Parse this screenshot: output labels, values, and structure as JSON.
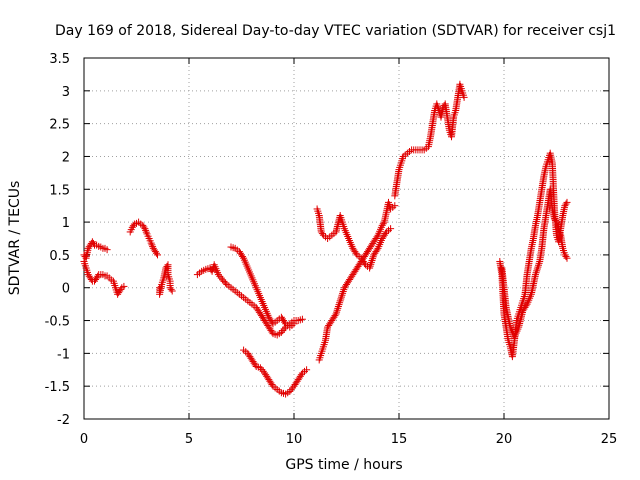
{
  "chart_data": {
    "type": "scatter",
    "title": "Day 169 of 2018, Sidereal Day-to-day VTEC variation (SDTVAR) for receiver csj1",
    "xlabel": "GPS time / hours",
    "ylabel": "SDTVAR / TECUs",
    "xlim": [
      0,
      25
    ],
    "ylim": [
      -2,
      3.5
    ],
    "xticks": [
      "0",
      "5",
      "10",
      "15",
      "20",
      "25"
    ],
    "yticks": [
      "-2",
      "-1.5",
      "-1",
      "-0.5",
      "0",
      "0.5",
      "1",
      "1.5",
      "2",
      "2.5",
      "3",
      "3.5"
    ],
    "grid": true,
    "marker": "plus",
    "color": "#e00000",
    "series": [
      {
        "points": [
          [
            0.0,
            0.5
          ],
          [
            0.1,
            0.45
          ],
          [
            0.2,
            0.6
          ],
          [
            0.3,
            0.65
          ],
          [
            0.4,
            0.7
          ],
          [
            0.5,
            0.65
          ],
          [
            0.6,
            0.65
          ],
          [
            0.7,
            0.63
          ],
          [
            0.8,
            0.62
          ],
          [
            0.9,
            0.6
          ],
          [
            1.0,
            0.6
          ],
          [
            1.1,
            0.58
          ]
        ]
      },
      {
        "points": [
          [
            0.0,
            0.4
          ],
          [
            0.1,
            0.3
          ],
          [
            0.2,
            0.2
          ],
          [
            0.3,
            0.15
          ],
          [
            0.4,
            0.1
          ],
          [
            0.5,
            0.1
          ],
          [
            0.6,
            0.15
          ],
          [
            0.7,
            0.2
          ],
          [
            0.8,
            0.2
          ],
          [
            0.9,
            0.2
          ],
          [
            1.0,
            0.18
          ],
          [
            1.1,
            0.18
          ],
          [
            1.2,
            0.15
          ],
          [
            1.3,
            0.12
          ],
          [
            1.4,
            0.1
          ],
          [
            1.5,
            0.0
          ],
          [
            1.6,
            -0.1
          ],
          [
            1.7,
            -0.05
          ],
          [
            1.8,
            0.0
          ],
          [
            1.9,
            0.02
          ]
        ]
      },
      {
        "points": [
          [
            2.2,
            0.85
          ],
          [
            2.3,
            0.92
          ],
          [
            2.4,
            0.97
          ],
          [
            2.5,
            0.98
          ],
          [
            2.6,
            1.0
          ],
          [
            2.7,
            0.97
          ],
          [
            2.8,
            0.95
          ],
          [
            2.9,
            0.9
          ],
          [
            3.0,
            0.82
          ],
          [
            3.1,
            0.75
          ],
          [
            3.2,
            0.68
          ],
          [
            3.3,
            0.6
          ],
          [
            3.4,
            0.55
          ],
          [
            3.5,
            0.5
          ]
        ]
      },
      {
        "points": [
          [
            3.6,
            0.0
          ],
          [
            3.6,
            -0.1
          ],
          [
            3.7,
            0.05
          ],
          [
            3.8,
            0.15
          ],
          [
            3.9,
            0.3
          ],
          [
            4.0,
            0.35
          ],
          [
            4.0,
            0.2
          ],
          [
            4.1,
            0.1
          ],
          [
            4.1,
            0.0
          ],
          [
            4.2,
            -0.05
          ]
        ]
      },
      {
        "points": [
          [
            5.4,
            0.2
          ],
          [
            5.6,
            0.25
          ],
          [
            5.8,
            0.28
          ],
          [
            6.0,
            0.3
          ],
          [
            6.1,
            0.25
          ],
          [
            6.2,
            0.35
          ],
          [
            6.4,
            0.2
          ],
          [
            6.6,
            0.12
          ],
          [
            6.8,
            0.05
          ],
          [
            7.0,
            0.0
          ],
          [
            7.2,
            -0.05
          ],
          [
            7.4,
            -0.1
          ],
          [
            7.6,
            -0.15
          ],
          [
            7.8,
            -0.2
          ],
          [
            8.0,
            -0.25
          ],
          [
            8.2,
            -0.3
          ],
          [
            8.4,
            -0.4
          ],
          [
            8.6,
            -0.5
          ],
          [
            8.8,
            -0.6
          ],
          [
            9.0,
            -0.7
          ],
          [
            9.2,
            -0.72
          ],
          [
            9.4,
            -0.68
          ],
          [
            9.6,
            -0.6
          ],
          [
            9.8,
            -0.55
          ],
          [
            10.0,
            -0.5
          ],
          [
            10.2,
            -0.5
          ],
          [
            10.4,
            -0.48
          ]
        ]
      },
      {
        "points": [
          [
            7.0,
            0.62
          ],
          [
            7.2,
            0.6
          ],
          [
            7.4,
            0.55
          ],
          [
            7.6,
            0.45
          ],
          [
            7.8,
            0.3
          ],
          [
            8.0,
            0.15
          ],
          [
            8.2,
            0.0
          ],
          [
            8.4,
            -0.15
          ],
          [
            8.6,
            -0.3
          ],
          [
            8.8,
            -0.45
          ],
          [
            9.0,
            -0.55
          ],
          [
            9.2,
            -0.5
          ],
          [
            9.4,
            -0.45
          ],
          [
            9.6,
            -0.55
          ],
          [
            9.8,
            -0.6
          ],
          [
            10.0,
            -0.55
          ]
        ]
      },
      {
        "points": [
          [
            7.6,
            -0.95
          ],
          [
            7.8,
            -1.0
          ],
          [
            8.0,
            -1.1
          ],
          [
            8.2,
            -1.2
          ],
          [
            8.4,
            -1.22
          ],
          [
            8.6,
            -1.3
          ],
          [
            8.8,
            -1.4
          ],
          [
            9.0,
            -1.5
          ],
          [
            9.2,
            -1.55
          ],
          [
            9.4,
            -1.6
          ],
          [
            9.6,
            -1.62
          ],
          [
            9.8,
            -1.58
          ],
          [
            10.0,
            -1.5
          ],
          [
            10.2,
            -1.4
          ],
          [
            10.4,
            -1.3
          ],
          [
            10.6,
            -1.25
          ]
        ]
      },
      {
        "points": [
          [
            11.2,
            -1.1
          ],
          [
            11.3,
            -1.0
          ],
          [
            11.4,
            -0.9
          ],
          [
            11.5,
            -0.8
          ],
          [
            11.6,
            -0.6
          ],
          [
            11.8,
            -0.5
          ],
          [
            12.0,
            -0.4
          ],
          [
            12.2,
            -0.2
          ],
          [
            12.4,
            0.0
          ],
          [
            12.6,
            0.1
          ],
          [
            12.8,
            0.2
          ],
          [
            13.0,
            0.3
          ],
          [
            13.2,
            0.4
          ],
          [
            13.4,
            0.5
          ],
          [
            13.6,
            0.6
          ],
          [
            13.8,
            0.7
          ],
          [
            14.0,
            0.8
          ],
          [
            14.2,
            0.95
          ],
          [
            14.3,
            1.0
          ],
          [
            14.4,
            1.15
          ],
          [
            14.5,
            1.3
          ],
          [
            14.6,
            1.2
          ],
          [
            14.8,
            1.25
          ]
        ]
      },
      {
        "points": [
          [
            11.1,
            1.2
          ],
          [
            11.2,
            1.1
          ],
          [
            11.3,
            0.85
          ],
          [
            11.4,
            0.8
          ],
          [
            11.6,
            0.75
          ],
          [
            11.8,
            0.8
          ],
          [
            12.0,
            0.85
          ],
          [
            12.2,
            1.1
          ],
          [
            12.3,
            1.0
          ],
          [
            12.4,
            0.9
          ],
          [
            12.6,
            0.75
          ],
          [
            12.8,
            0.6
          ],
          [
            13.0,
            0.5
          ],
          [
            13.2,
            0.45
          ],
          [
            13.4,
            0.35
          ],
          [
            13.6,
            0.3
          ],
          [
            13.8,
            0.5
          ],
          [
            14.0,
            0.6
          ],
          [
            14.2,
            0.75
          ],
          [
            14.4,
            0.85
          ],
          [
            14.6,
            0.9
          ]
        ]
      },
      {
        "points": [
          [
            14.8,
            1.4
          ],
          [
            14.9,
            1.6
          ],
          [
            15.0,
            1.8
          ],
          [
            15.1,
            1.9
          ],
          [
            15.2,
            2.0
          ],
          [
            15.4,
            2.05
          ],
          [
            15.6,
            2.1
          ],
          [
            15.8,
            2.1
          ],
          [
            16.0,
            2.1
          ],
          [
            16.2,
            2.1
          ],
          [
            16.4,
            2.15
          ],
          [
            16.5,
            2.3
          ],
          [
            16.6,
            2.5
          ],
          [
            16.7,
            2.7
          ],
          [
            16.8,
            2.8
          ],
          [
            16.9,
            2.7
          ],
          [
            17.0,
            2.6
          ],
          [
            17.1,
            2.75
          ],
          [
            17.2,
            2.8
          ],
          [
            17.3,
            2.6
          ],
          [
            17.4,
            2.4
          ],
          [
            17.5,
            2.3
          ],
          [
            17.6,
            2.6
          ],
          [
            17.7,
            2.7
          ],
          [
            17.8,
            2.9
          ],
          [
            17.9,
            3.1
          ],
          [
            18.0,
            3.0
          ],
          [
            18.1,
            2.9
          ]
        ]
      },
      {
        "points": [
          [
            19.8,
            0.4
          ],
          [
            19.9,
            0.2
          ],
          [
            20.0,
            -0.4
          ],
          [
            20.1,
            -0.6
          ],
          [
            20.2,
            -0.8
          ],
          [
            20.3,
            -0.9
          ],
          [
            20.4,
            -1.05
          ],
          [
            20.5,
            -0.8
          ],
          [
            20.6,
            -0.5
          ],
          [
            20.7,
            -0.4
          ],
          [
            20.8,
            -0.3
          ],
          [
            20.9,
            -0.2
          ],
          [
            21.0,
            -0.1
          ],
          [
            21.1,
            0.2
          ],
          [
            21.2,
            0.4
          ],
          [
            21.3,
            0.6
          ],
          [
            21.4,
            0.75
          ],
          [
            21.5,
            0.95
          ],
          [
            21.6,
            1.1
          ],
          [
            21.7,
            1.3
          ],
          [
            21.8,
            1.5
          ],
          [
            21.9,
            1.7
          ],
          [
            22.0,
            1.85
          ],
          [
            22.1,
            1.95
          ],
          [
            22.2,
            2.05
          ],
          [
            22.3,
            1.9
          ],
          [
            22.4,
            1.2
          ],
          [
            22.5,
            0.8
          ],
          [
            22.6,
            0.7
          ],
          [
            22.7,
            0.9
          ],
          [
            22.8,
            1.1
          ],
          [
            22.9,
            1.25
          ],
          [
            23.0,
            1.3
          ]
        ]
      },
      {
        "points": [
          [
            19.9,
            0.3
          ],
          [
            20.0,
            0.0
          ],
          [
            20.1,
            -0.3
          ],
          [
            20.3,
            -0.6
          ],
          [
            20.5,
            -0.75
          ],
          [
            20.7,
            -0.6
          ],
          [
            20.9,
            -0.35
          ],
          [
            21.1,
            -0.25
          ],
          [
            21.3,
            -0.1
          ],
          [
            21.5,
            0.2
          ],
          [
            21.7,
            0.4
          ],
          [
            21.8,
            0.6
          ],
          [
            21.9,
            0.9
          ],
          [
            22.0,
            1.1
          ],
          [
            22.1,
            1.3
          ],
          [
            22.2,
            1.5
          ],
          [
            22.3,
            1.2
          ],
          [
            22.4,
            1.05
          ],
          [
            22.5,
            1.0
          ],
          [
            22.6,
            0.9
          ],
          [
            22.7,
            0.8
          ],
          [
            22.8,
            0.6
          ],
          [
            22.9,
            0.5
          ],
          [
            23.0,
            0.45
          ]
        ]
      }
    ]
  }
}
